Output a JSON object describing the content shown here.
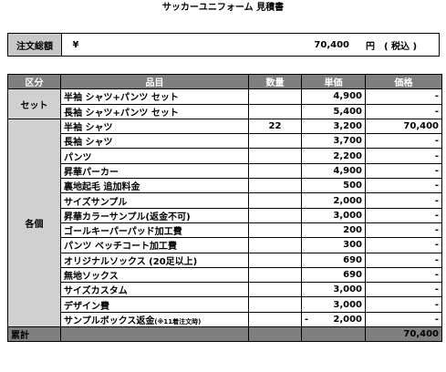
{
  "title": "サッカーユニフォーム 見積書",
  "summary": {
    "label": "注文総額",
    "currency": "¥",
    "amount": "70,400",
    "unit": "円",
    "tax": "( 税込 )"
  },
  "table": {
    "headers": [
      "区分",
      "品目",
      "数量",
      "単価",
      "価格"
    ],
    "set": {
      "category": "セット",
      "rows": [
        {
          "item": "半袖 シャツ+パンツ セット",
          "qty": "",
          "price": "4,900",
          "total": "-"
        },
        {
          "item": "長袖 シャツ+パンツ セット",
          "qty": "",
          "price": "5,400",
          "total": "-"
        }
      ]
    },
    "individual": {
      "category": "各個",
      "rows": [
        {
          "item": "半袖 シャツ",
          "qty": "22",
          "price": "3,200",
          "total": "70,400"
        },
        {
          "item": "長袖 シャツ",
          "qty": "",
          "price": "3,700",
          "total": "-"
        },
        {
          "item": "パンツ",
          "qty": "",
          "price": "2,200",
          "total": "-"
        },
        {
          "item": "昇華パーカー",
          "qty": "",
          "price": "4,900",
          "total": "-"
        },
        {
          "item": "裏地起毛 追加料金",
          "qty": "",
          "price": "500",
          "total": "-"
        },
        {
          "item": "サイズサンプル",
          "qty": "",
          "price": "2,000",
          "total": "-"
        },
        {
          "item": "昇華カラーサンプル(返金不可)",
          "qty": "",
          "price": "3,000",
          "total": "-"
        },
        {
          "item": "ゴールキーパーパッド加工費",
          "qty": "",
          "price": "200",
          "total": "-"
        },
        {
          "item": "パンツ ベッチコート加工費",
          "qty": "",
          "price": "300",
          "total": "-"
        },
        {
          "item": "オリジナルソックス (20足以上)",
          "qty": "",
          "price": "690",
          "total": "-"
        },
        {
          "item": "無地ソックス",
          "qty": "",
          "price": "690",
          "total": "-"
        },
        {
          "item": "サイズカスタム",
          "qty": "",
          "price": "3,000",
          "total": "-"
        },
        {
          "item": "デザイン費",
          "qty": "",
          "price": "3,000",
          "total": "-"
        }
      ],
      "refund_row": {
        "item": "サンプルボックス返金",
        "item_note": "(※11着注文時)",
        "qty": "",
        "price_sign": "-",
        "price": "2,000",
        "total": "-"
      }
    },
    "sum": {
      "label": "累計",
      "total": "70,400"
    }
  }
}
